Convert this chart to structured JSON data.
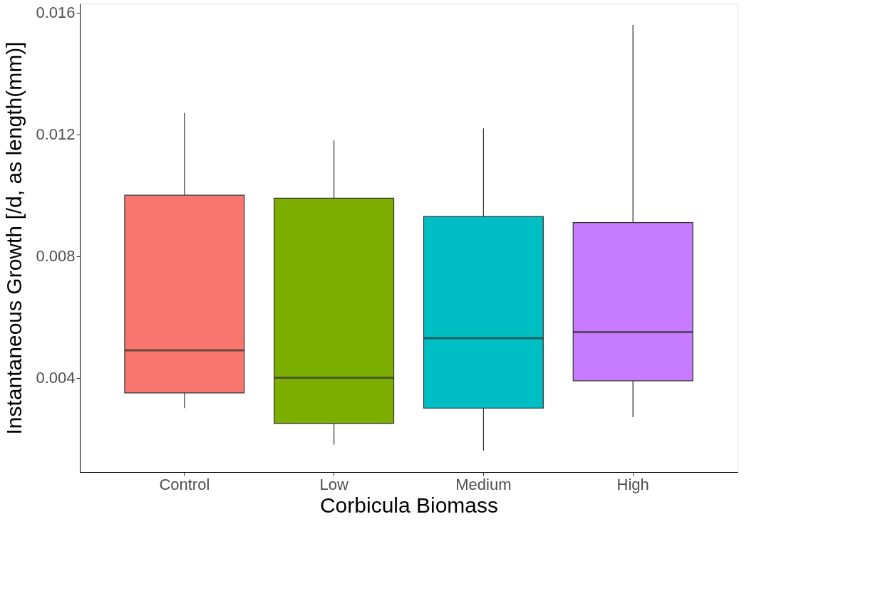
{
  "chart_data": {
    "type": "box",
    "xlabel": "Corbicula Biomass",
    "ylabel": "Instantaneous Growth [/d, as length(mm)]",
    "categories": [
      "Control",
      "Low",
      "Medium",
      "High"
    ],
    "colors": [
      "#f8766d",
      "#7cae00",
      "#00bfc4",
      "#c77cff"
    ],
    "boxes": [
      {
        "low": 0.003,
        "q1": 0.0035,
        "median": 0.0049,
        "q3": 0.01,
        "high": 0.0127
      },
      {
        "low": 0.0018,
        "q1": 0.0025,
        "median": 0.004,
        "q3": 0.0099,
        "high": 0.0118
      },
      {
        "low": 0.0016,
        "q1": 0.003,
        "median": 0.0053,
        "q3": 0.0093,
        "high": 0.0122
      },
      {
        "low": 0.0027,
        "q1": 0.0039,
        "median": 0.0055,
        "q3": 0.0091,
        "high": 0.0156
      }
    ],
    "ylim": [
      0.0009,
      0.0163
    ],
    "yticks": [
      0.004,
      0.008,
      0.012,
      0.016
    ],
    "grid": false,
    "legend": false
  }
}
